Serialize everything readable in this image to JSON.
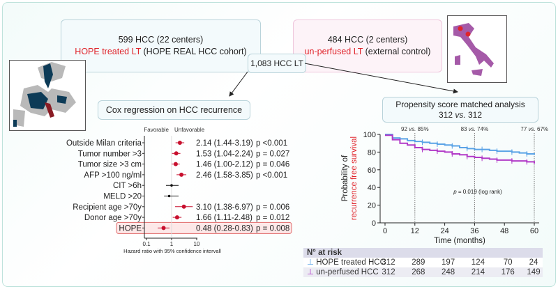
{
  "hope_box": {
    "line1": "599 HCC (22 centers)",
    "highlight": "HOPE treated LT",
    "rest": " (HOPE REAL HCC cohort)"
  },
  "control_box": {
    "line1": "484 HCC (2 centers)",
    "highlight": "un-perfused LT",
    "rest": " (external control)"
  },
  "total_box": {
    "label": "1,083 HCC LT"
  },
  "cox_box": {
    "label": "Cox regression on HCC recurrence"
  },
  "psm_box": {
    "line1": "Propensity score matched analysis",
    "line2a": "312 ",
    "line2b": "vs.",
    "line2c": " 312"
  },
  "colors": {
    "accent_red": "#e0242b",
    "navy": "#0d3b57",
    "purple": "#b23bc8",
    "blue": "#5aa3e6"
  },
  "chart_data": [
    {
      "type": "forest",
      "xlabel": "Hazard ratio with 95% confidence intervall",
      "scale": "log",
      "xticks": [
        "0.1",
        "1",
        "10"
      ],
      "xlim": [
        0.1,
        10
      ],
      "left_header": "Favorable",
      "right_header": "Unfavorable",
      "rows": [
        {
          "label": "Outside Milan criteria",
          "hr": 2.14,
          "lo": 1.44,
          "hi": 3.19,
          "text": "2.14 (1.44-3.19)",
          "p": "p <0.001",
          "sig": true
        },
        {
          "label": "Tumor number >3",
          "hr": 1.53,
          "lo": 1.04,
          "hi": 2.24,
          "text": "1.53 (1.04-2.24)",
          "p": "p = 0.027",
          "sig": true
        },
        {
          "label": "Tumor size >3 cm",
          "hr": 1.46,
          "lo": 1.0,
          "hi": 2.12,
          "text": "1.46 (1.00-2.12)",
          "p": "p = 0.046",
          "sig": true
        },
        {
          "label": "AFP >100 ng/ml",
          "hr": 2.46,
          "lo": 1.58,
          "hi": 3.85,
          "text": "2.46 (1.58-3.85)",
          "p": "p <0.001",
          "sig": true
        },
        {
          "label": "CIT >6h",
          "hr": 1.0,
          "lo": 0.6,
          "hi": 1.9,
          "text": "",
          "p": "",
          "sig": false
        },
        {
          "label": "MELD >20",
          "hr": 0.8,
          "lo": 0.5,
          "hi": 1.9,
          "text": "",
          "p": "",
          "sig": false
        },
        {
          "label": "Recipient age >70y",
          "hr": 3.1,
          "lo": 1.38,
          "hi": 6.97,
          "text": "3.10 (1.38-6.97)",
          "p": "p = 0.006",
          "sig": true
        },
        {
          "label": "Donor age >70y",
          "hr": 1.66,
          "lo": 1.11,
          "hi": 2.48,
          "text": "1.66 (1.11-2.48)",
          "p": "p = 0.012",
          "sig": true
        },
        {
          "label": "HOPE",
          "hr": 0.48,
          "lo": 0.28,
          "hi": 0.83,
          "text": "0.48 (0.28-0.83)",
          "p": "p = 0.008",
          "sig": true,
          "highlight": true
        }
      ]
    },
    {
      "type": "line",
      "ylabel_line1": "Probability of",
      "ylabel_line2": "recurrence free survival",
      "xlabel": "Time (months)",
      "xlim": [
        0,
        60
      ],
      "ylim": [
        0,
        100
      ],
      "xticks": [
        0,
        12,
        24,
        36,
        48,
        60
      ],
      "yticks": [
        0,
        20,
        40,
        60,
        80,
        100
      ],
      "annotations": [
        {
          "x": 12,
          "a": "92 ",
          "vs": "vs.",
          "b": " 85%"
        },
        {
          "x": 36,
          "a": "83 ",
          "vs": "vs.",
          "b": " 74%"
        },
        {
          "x": 60,
          "a": "77 ",
          "vs": "vs.",
          "b": " 67%"
        }
      ],
      "pvalue": {
        "p": "p",
        "rest": " = 0.019 (log rank)"
      },
      "series": [
        {
          "name": "HOPE treated HCC",
          "color": "#5aa3e6",
          "x": [
            0,
            3,
            6,
            9,
            12,
            15,
            18,
            21,
            24,
            27,
            30,
            33,
            36,
            39,
            42,
            45,
            48,
            51,
            54,
            57,
            60
          ],
          "y": [
            100,
            96,
            95,
            93,
            92,
            91,
            90,
            89,
            88,
            87,
            85,
            84,
            83,
            83,
            82,
            81,
            81,
            80,
            79,
            78,
            77
          ]
        },
        {
          "name": "un-perfused HCC",
          "color": "#b23bc8",
          "x": [
            0,
            3,
            6,
            9,
            12,
            15,
            18,
            21,
            24,
            27,
            30,
            33,
            36,
            39,
            42,
            45,
            48,
            51,
            54,
            57,
            60
          ],
          "y": [
            99,
            94,
            90,
            88,
            85,
            83,
            82,
            81,
            80,
            78,
            77,
            75,
            74,
            73,
            72,
            71,
            71,
            70,
            70,
            69,
            67
          ]
        }
      ]
    }
  ],
  "risk_table": {
    "title": "N° at risk",
    "rows": [
      {
        "name": "HOPE treated HCC",
        "values": [
          "312",
          "289",
          "197",
          "124",
          "70",
          "24"
        ]
      },
      {
        "name": "un-perfused HCC",
        "values": [
          "312",
          "268",
          "248",
          "214",
          "176",
          "149"
        ]
      }
    ]
  }
}
